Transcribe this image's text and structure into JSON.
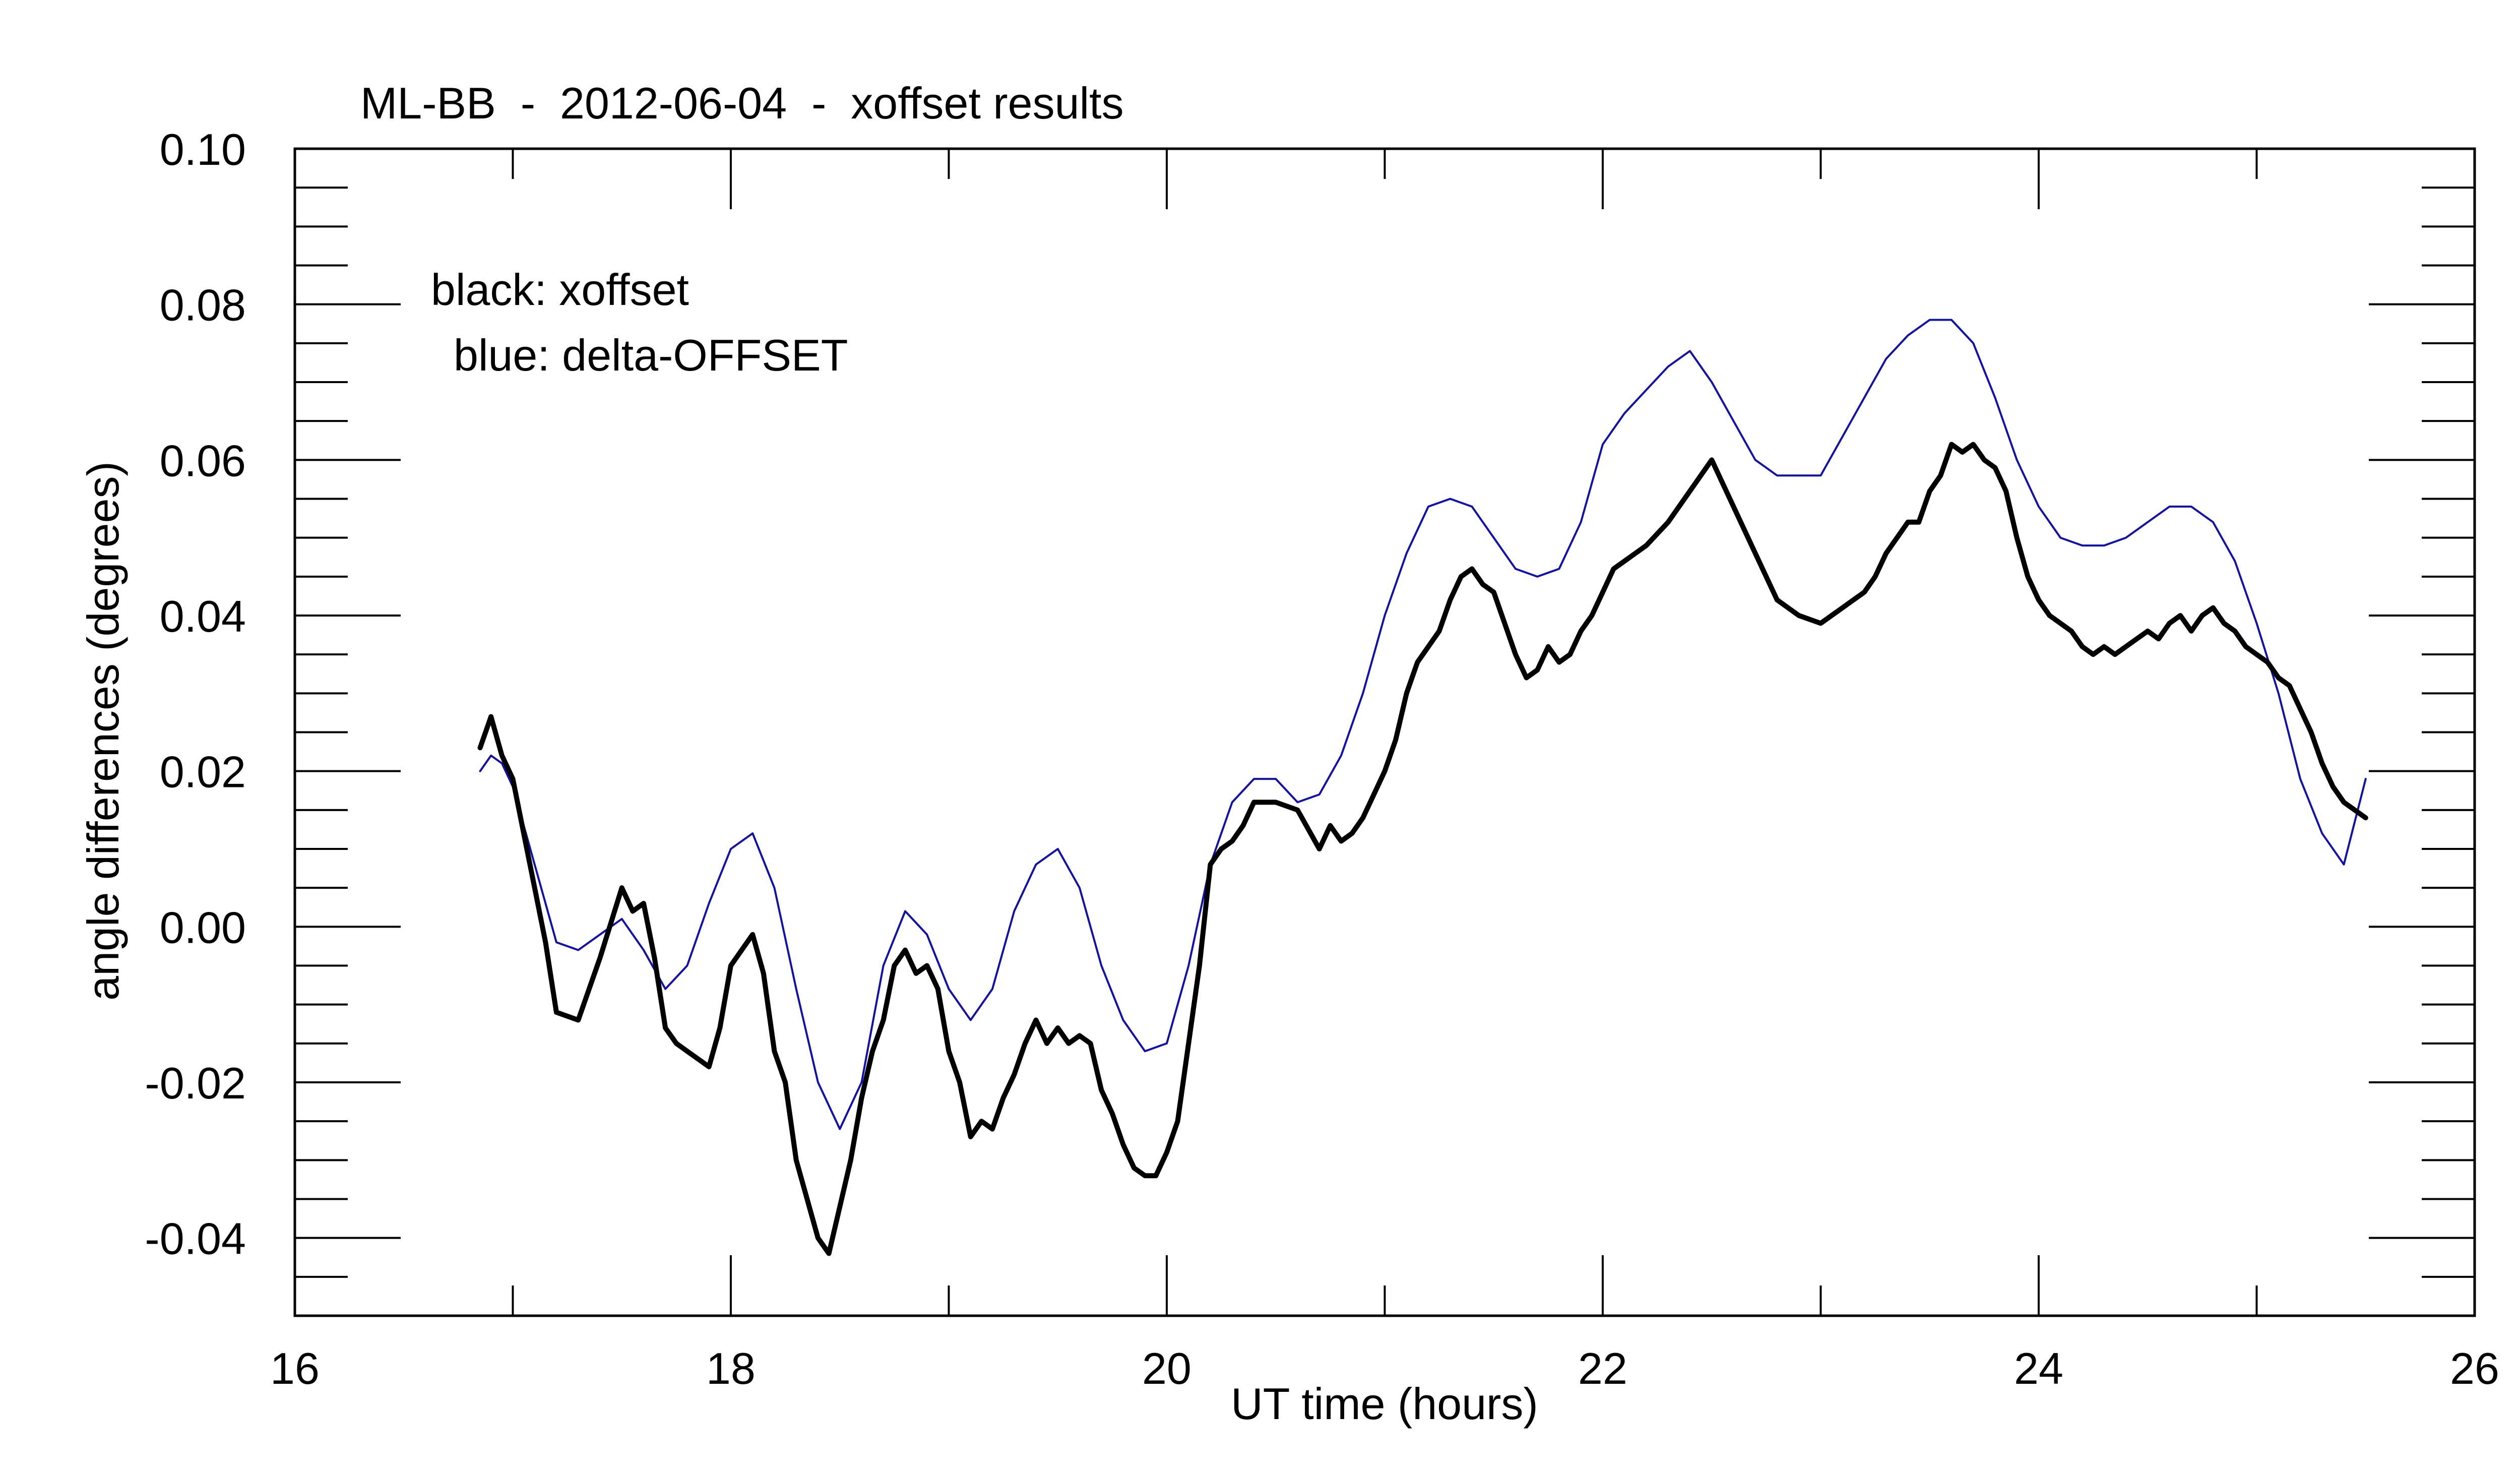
{
  "chart_data": {
    "type": "line",
    "title": "ML-BB  -  2012-06-04  -  xoffset results",
    "xlabel": "UT time (hours)",
    "ylabel": "angle differences (degrees)",
    "xlim": [
      16,
      26
    ],
    "ylim": [
      -0.05,
      0.1
    ],
    "x_ticks": [
      "16",
      "18",
      "20",
      "22",
      "24",
      "26"
    ],
    "y_ticks": [
      "0.10",
      "0.08",
      "0.06",
      "0.04",
      "0.02",
      "0.00",
      "-0.02",
      "-0.04"
    ],
    "grid": false,
    "legend": {
      "placement": "top-left",
      "lines": [
        "black: xoffset",
        "blue: delta-OFFSET"
      ]
    },
    "series": [
      {
        "name": "xoffset",
        "color": "#000000",
        "x": [
          16.85,
          16.9,
          16.95,
          17.0,
          17.05,
          17.1,
          17.15,
          17.2,
          17.3,
          17.4,
          17.5,
          17.55,
          17.6,
          17.65,
          17.7,
          17.75,
          17.8,
          17.85,
          17.9,
          17.95,
          18.0,
          18.05,
          18.1,
          18.15,
          18.2,
          18.25,
          18.3,
          18.35,
          18.4,
          18.45,
          18.5,
          18.55,
          18.6,
          18.65,
          18.7,
          18.75,
          18.8,
          18.85,
          18.9,
          18.95,
          19.0,
          19.05,
          19.1,
          19.15,
          19.2,
          19.25,
          19.3,
          19.35,
          19.4,
          19.45,
          19.5,
          19.55,
          19.6,
          19.65,
          19.7,
          19.75,
          19.8,
          19.85,
          19.9,
          19.95,
          20.0,
          20.05,
          20.1,
          20.15,
          20.2,
          20.25,
          20.3,
          20.35,
          20.4,
          20.5,
          20.6,
          20.7,
          20.75,
          20.8,
          20.85,
          20.9,
          20.95,
          21.0,
          21.05,
          21.1,
          21.15,
          21.2,
          21.25,
          21.3,
          21.35,
          21.4,
          21.45,
          21.5,
          21.55,
          21.6,
          21.65,
          21.7,
          21.75,
          21.8,
          21.85,
          21.9,
          21.95,
          22.0,
          22.05,
          22.1,
          22.15,
          22.2,
          22.3,
          22.4,
          22.5,
          22.6,
          22.7,
          22.8,
          22.9,
          23.0,
          23.05,
          23.1,
          23.15,
          23.2,
          23.25,
          23.3,
          23.35,
          23.4,
          23.45,
          23.5,
          23.55,
          23.6,
          23.65,
          23.7,
          23.75,
          23.8,
          23.85,
          23.9,
          23.95,
          24.0,
          24.05,
          24.1,
          24.15,
          24.2,
          24.25,
          24.3,
          24.35,
          24.4,
          24.45,
          24.5,
          24.55,
          24.6,
          24.65,
          24.7,
          24.75,
          24.8,
          24.85,
          24.9,
          24.95,
          25.0,
          25.05,
          25.1,
          25.15,
          25.2,
          25.25,
          25.3,
          25.35,
          25.4,
          25.45,
          25.5
        ],
        "y": [
          0.023,
          0.027,
          0.022,
          0.019,
          0.012,
          0.005,
          -0.002,
          -0.011,
          -0.012,
          -0.004,
          0.005,
          0.002,
          0.003,
          -0.004,
          -0.013,
          -0.015,
          -0.016,
          -0.017,
          -0.018,
          -0.013,
          -0.005,
          -0.003,
          -0.001,
          -0.006,
          -0.016,
          -0.02,
          -0.03,
          -0.035,
          -0.04,
          -0.042,
          -0.036,
          -0.03,
          -0.022,
          -0.016,
          -0.012,
          -0.005,
          -0.003,
          -0.006,
          -0.005,
          -0.008,
          -0.016,
          -0.02,
          -0.027,
          -0.025,
          -0.026,
          -0.022,
          -0.019,
          -0.015,
          -0.012,
          -0.015,
          -0.013,
          -0.015,
          -0.014,
          -0.015,
          -0.021,
          -0.024,
          -0.028,
          -0.031,
          -0.032,
          -0.032,
          -0.029,
          -0.025,
          -0.015,
          -0.005,
          0.008,
          0.01,
          0.011,
          0.013,
          0.016,
          0.016,
          0.015,
          0.01,
          0.013,
          0.011,
          0.012,
          0.014,
          0.017,
          0.02,
          0.024,
          0.03,
          0.034,
          0.036,
          0.038,
          0.042,
          0.045,
          0.046,
          0.044,
          0.043,
          0.039,
          0.035,
          0.032,
          0.033,
          0.036,
          0.034,
          0.035,
          0.038,
          0.04,
          0.043,
          0.046,
          0.047,
          0.048,
          0.049,
          0.052,
          0.056,
          0.06,
          0.054,
          0.048,
          0.042,
          0.04,
          0.039,
          0.04,
          0.041,
          0.042,
          0.043,
          0.045,
          0.048,
          0.05,
          0.052,
          0.052,
          0.056,
          0.058,
          0.062,
          0.061,
          0.062,
          0.06,
          0.059,
          0.056,
          0.05,
          0.045,
          0.042,
          0.04,
          0.039,
          0.038,
          0.036,
          0.035,
          0.036,
          0.035,
          0.036,
          0.037,
          0.038,
          0.037,
          0.039,
          0.04,
          0.038,
          0.04,
          0.041,
          0.039,
          0.038,
          0.036,
          0.035,
          0.034,
          0.032,
          0.031,
          0.028,
          0.025,
          0.021,
          0.018,
          0.016,
          0.015,
          0.014
        ]
      },
      {
        "name": "delta-OFFSET",
        "color": "#1010b0",
        "x": [
          16.85,
          16.9,
          16.95,
          17.0,
          17.1,
          17.2,
          17.3,
          17.4,
          17.5,
          17.6,
          17.7,
          17.8,
          17.9,
          18.0,
          18.1,
          18.2,
          18.3,
          18.4,
          18.5,
          18.6,
          18.7,
          18.8,
          18.9,
          19.0,
          19.1,
          19.2,
          19.3,
          19.4,
          19.5,
          19.6,
          19.7,
          19.8,
          19.9,
          20.0,
          20.1,
          20.2,
          20.3,
          20.4,
          20.5,
          20.6,
          20.7,
          20.8,
          20.9,
          21.0,
          21.1,
          21.2,
          21.3,
          21.4,
          21.5,
          21.6,
          21.7,
          21.8,
          21.9,
          22.0,
          22.1,
          22.2,
          22.3,
          22.4,
          22.5,
          22.6,
          22.7,
          22.8,
          22.9,
          23.0,
          23.1,
          23.2,
          23.3,
          23.4,
          23.5,
          23.6,
          23.7,
          23.8,
          23.9,
          24.0,
          24.1,
          24.2,
          24.3,
          24.4,
          24.5,
          24.6,
          24.7,
          24.8,
          24.9,
          25.0,
          25.1,
          25.2,
          25.3,
          25.4,
          25.5
        ],
        "y": [
          0.02,
          0.022,
          0.021,
          0.018,
          0.008,
          -0.002,
          -0.003,
          -0.001,
          0.001,
          -0.003,
          -0.008,
          -0.005,
          0.003,
          0.01,
          0.012,
          0.005,
          -0.008,
          -0.02,
          -0.026,
          -0.02,
          -0.005,
          0.002,
          -0.001,
          -0.008,
          -0.012,
          -0.008,
          0.002,
          0.008,
          0.01,
          0.005,
          -0.005,
          -0.012,
          -0.016,
          -0.015,
          -0.005,
          0.008,
          0.016,
          0.019,
          0.019,
          0.016,
          0.017,
          0.022,
          0.03,
          0.04,
          0.048,
          0.054,
          0.055,
          0.054,
          0.05,
          0.046,
          0.045,
          0.046,
          0.052,
          0.062,
          0.066,
          0.069,
          0.072,
          0.074,
          0.07,
          0.065,
          0.06,
          0.058,
          0.058,
          0.058,
          0.063,
          0.068,
          0.073,
          0.076,
          0.078,
          0.078,
          0.075,
          0.068,
          0.06,
          0.054,
          0.05,
          0.049,
          0.049,
          0.05,
          0.052,
          0.054,
          0.054,
          0.052,
          0.047,
          0.039,
          0.03,
          0.019,
          0.012,
          0.008,
          0.019
        ]
      }
    ]
  }
}
